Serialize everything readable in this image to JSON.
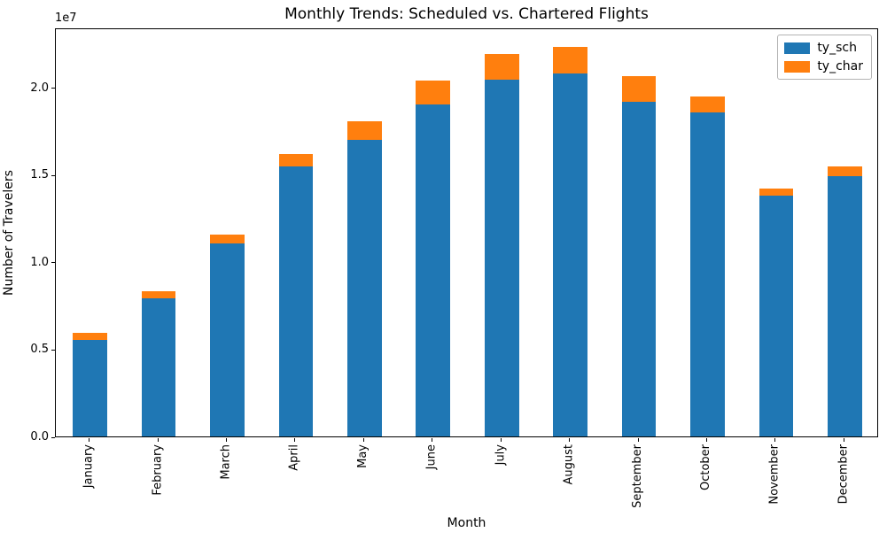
{
  "chart_data": {
    "type": "bar",
    "stacked": true,
    "title": "Monthly Trends: Scheduled vs. Chartered Flights",
    "xlabel": "Month",
    "ylabel": "Number of Travelers",
    "y_offset_text": "1e7",
    "grid": false,
    "legend_position": "upper right",
    "x_tick_rotation": 90,
    "bar_width_fraction": 0.5,
    "categories": [
      "January",
      "February",
      "March",
      "April",
      "May",
      "June",
      "July",
      "August",
      "September",
      "October",
      "November",
      "December"
    ],
    "series": [
      {
        "name": "ty_sch",
        "color": "#1f77b4",
        "values": [
          5550000,
          7900000,
          11080000,
          15470000,
          17000000,
          19030000,
          20470000,
          20800000,
          19190000,
          18560000,
          13790000,
          14930000
        ]
      },
      {
        "name": "ty_char",
        "color": "#ff7f0e",
        "values": [
          370000,
          440000,
          470000,
          710000,
          1070000,
          1390000,
          1480000,
          1530000,
          1460000,
          950000,
          440000,
          540000
        ]
      }
    ],
    "ylim": [
      0,
      23450000
    ],
    "yticks": [
      {
        "label": "0.0",
        "value": 0
      },
      {
        "label": "0.5",
        "value": 5000000
      },
      {
        "label": "1.0",
        "value": 10000000
      },
      {
        "label": "1.5",
        "value": 15000000
      },
      {
        "label": "2.0",
        "value": 20000000
      }
    ]
  }
}
